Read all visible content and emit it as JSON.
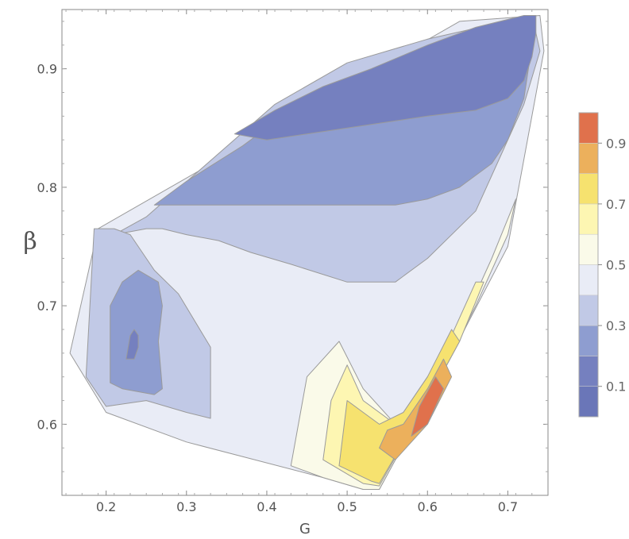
{
  "chart_data": {
    "type": "heatmap",
    "subtype": "filled-contour",
    "title": "",
    "xlabel": "G",
    "ylabel": "β",
    "xlim": [
      0.145,
      0.75
    ],
    "ylim": [
      0.54,
      0.95
    ],
    "xticks": [
      0.2,
      0.3,
      0.4,
      0.5,
      0.6,
      0.7
    ],
    "xtick_labels": [
      "0.2",
      "0.3",
      "0.4",
      "0.5",
      "0.6",
      "0.7"
    ],
    "yticks": [
      0.6,
      0.7,
      0.8,
      0.9
    ],
    "ytick_labels": [
      "0.6",
      "0.7",
      "0.8",
      "0.9"
    ],
    "grid": false,
    "legend_placement": "right",
    "colorbar": {
      "levels": [
        0,
        0.1,
        0.2,
        0.3,
        0.4,
        0.5,
        0.6,
        0.7,
        0.8,
        0.9,
        1.0
      ],
      "colors": [
        "#6a76b8",
        "#7580bf",
        "#8e9dd0",
        "#c1c9e6",
        "#e9ecf6",
        "#fafae9",
        "#fdf6b2",
        "#f6e26f",
        "#ecb05c",
        "#e0714c"
      ],
      "tick_values": [
        0.1,
        0.3,
        0.5,
        0.7,
        0.9
      ],
      "tick_labels": [
        "0.1",
        "0.3",
        "0.5",
        "0.7",
        "0.9"
      ]
    },
    "regions": [
      {
        "band": 4,
        "points": [
          [
            0.155,
            0.66
          ],
          [
            0.19,
            0.765
          ],
          [
            0.64,
            0.94
          ],
          [
            0.74,
            0.945
          ],
          [
            0.745,
            0.915
          ],
          [
            0.7,
            0.75
          ],
          [
            0.6,
            0.62
          ],
          [
            0.54,
            0.545
          ],
          [
            0.52,
            0.545
          ],
          [
            0.47,
            0.555
          ],
          [
            0.3,
            0.585
          ],
          [
            0.2,
            0.61
          ],
          [
            0.155,
            0.66
          ]
        ]
      },
      {
        "band": 3,
        "points": [
          [
            0.21,
            0.76
          ],
          [
            0.25,
            0.775
          ],
          [
            0.41,
            0.87
          ],
          [
            0.5,
            0.905
          ],
          [
            0.6,
            0.925
          ],
          [
            0.73,
            0.945
          ],
          [
            0.74,
            0.915
          ],
          [
            0.72,
            0.87
          ],
          [
            0.66,
            0.78
          ],
          [
            0.6,
            0.74
          ],
          [
            0.56,
            0.72
          ],
          [
            0.5,
            0.72
          ],
          [
            0.43,
            0.735
          ],
          [
            0.38,
            0.745
          ],
          [
            0.34,
            0.755
          ],
          [
            0.3,
            0.76
          ],
          [
            0.27,
            0.765
          ],
          [
            0.25,
            0.765
          ],
          [
            0.21,
            0.76
          ]
        ]
      },
      {
        "band": 3,
        "points": [
          [
            0.175,
            0.64
          ],
          [
            0.185,
            0.765
          ],
          [
            0.21,
            0.765
          ],
          [
            0.23,
            0.76
          ],
          [
            0.26,
            0.73
          ],
          [
            0.29,
            0.71
          ],
          [
            0.33,
            0.665
          ],
          [
            0.33,
            0.605
          ],
          [
            0.3,
            0.61
          ],
          [
            0.25,
            0.62
          ],
          [
            0.2,
            0.615
          ],
          [
            0.175,
            0.64
          ]
        ]
      },
      {
        "band": 2,
        "points": [
          [
            0.26,
            0.785
          ],
          [
            0.3,
            0.805
          ],
          [
            0.37,
            0.835
          ],
          [
            0.42,
            0.86
          ],
          [
            0.5,
            0.89
          ],
          [
            0.56,
            0.905
          ],
          [
            0.63,
            0.92
          ],
          [
            0.7,
            0.94
          ],
          [
            0.735,
            0.945
          ],
          [
            0.73,
            0.92
          ],
          [
            0.72,
            0.875
          ],
          [
            0.7,
            0.84
          ],
          [
            0.68,
            0.82
          ],
          [
            0.64,
            0.8
          ],
          [
            0.6,
            0.79
          ],
          [
            0.56,
            0.785
          ],
          [
            0.5,
            0.785
          ],
          [
            0.45,
            0.785
          ],
          [
            0.4,
            0.785
          ],
          [
            0.35,
            0.785
          ],
          [
            0.3,
            0.785
          ],
          [
            0.26,
            0.785
          ]
        ]
      },
      {
        "band": 2,
        "points": [
          [
            0.205,
            0.7
          ],
          [
            0.205,
            0.635
          ],
          [
            0.22,
            0.63
          ],
          [
            0.26,
            0.625
          ],
          [
            0.27,
            0.63
          ],
          [
            0.265,
            0.67
          ],
          [
            0.27,
            0.7
          ],
          [
            0.265,
            0.72
          ],
          [
            0.24,
            0.73
          ],
          [
            0.22,
            0.72
          ],
          [
            0.205,
            0.7
          ]
        ]
      },
      {
        "band": 1,
        "points": [
          [
            0.36,
            0.845
          ],
          [
            0.41,
            0.865
          ],
          [
            0.47,
            0.885
          ],
          [
            0.53,
            0.9
          ],
          [
            0.6,
            0.92
          ],
          [
            0.66,
            0.935
          ],
          [
            0.72,
            0.945
          ],
          [
            0.735,
            0.945
          ],
          [
            0.735,
            0.93
          ],
          [
            0.73,
            0.91
          ],
          [
            0.72,
            0.89
          ],
          [
            0.7,
            0.875
          ],
          [
            0.66,
            0.865
          ],
          [
            0.6,
            0.86
          ],
          [
            0.55,
            0.855
          ],
          [
            0.5,
            0.85
          ],
          [
            0.45,
            0.845
          ],
          [
            0.4,
            0.84
          ],
          [
            0.36,
            0.845
          ]
        ]
      },
      {
        "band": 1,
        "points": [
          [
            0.225,
            0.655
          ],
          [
            0.23,
            0.675
          ],
          [
            0.235,
            0.68
          ],
          [
            0.24,
            0.675
          ],
          [
            0.24,
            0.665
          ],
          [
            0.235,
            0.655
          ],
          [
            0.225,
            0.655
          ]
        ]
      },
      {
        "band": 5,
        "points": [
          [
            0.43,
            0.565
          ],
          [
            0.47,
            0.555
          ],
          [
            0.52,
            0.545
          ],
          [
            0.54,
            0.545
          ],
          [
            0.6,
            0.62
          ],
          [
            0.66,
            0.7
          ],
          [
            0.7,
            0.76
          ],
          [
            0.71,
            0.79
          ],
          [
            0.68,
            0.74
          ],
          [
            0.64,
            0.68
          ],
          [
            0.6,
            0.63
          ],
          [
            0.56,
            0.6
          ],
          [
            0.52,
            0.63
          ],
          [
            0.49,
            0.67
          ],
          [
            0.45,
            0.64
          ],
          [
            0.43,
            0.565
          ]
        ]
      },
      {
        "band": 6,
        "points": [
          [
            0.47,
            0.57
          ],
          [
            0.52,
            0.55
          ],
          [
            0.54,
            0.548
          ],
          [
            0.6,
            0.62
          ],
          [
            0.64,
            0.67
          ],
          [
            0.67,
            0.72
          ],
          [
            0.66,
            0.72
          ],
          [
            0.62,
            0.66
          ],
          [
            0.58,
            0.62
          ],
          [
            0.56,
            0.6
          ],
          [
            0.52,
            0.62
          ],
          [
            0.5,
            0.65
          ],
          [
            0.48,
            0.62
          ],
          [
            0.47,
            0.57
          ]
        ]
      },
      {
        "band": 7,
        "points": [
          [
            0.49,
            0.565
          ],
          [
            0.53,
            0.552
          ],
          [
            0.54,
            0.55
          ],
          [
            0.6,
            0.62
          ],
          [
            0.64,
            0.67
          ],
          [
            0.63,
            0.68
          ],
          [
            0.6,
            0.64
          ],
          [
            0.57,
            0.61
          ],
          [
            0.54,
            0.6
          ],
          [
            0.52,
            0.61
          ],
          [
            0.5,
            0.62
          ],
          [
            0.49,
            0.565
          ]
        ]
      },
      {
        "band": 8,
        "points": [
          [
            0.54,
            0.58
          ],
          [
            0.56,
            0.57
          ],
          [
            0.6,
            0.6
          ],
          [
            0.63,
            0.64
          ],
          [
            0.62,
            0.655
          ],
          [
            0.6,
            0.63
          ],
          [
            0.57,
            0.6
          ],
          [
            0.55,
            0.595
          ],
          [
            0.54,
            0.58
          ]
        ]
      },
      {
        "band": 9,
        "points": [
          [
            0.58,
            0.59
          ],
          [
            0.6,
            0.6
          ],
          [
            0.62,
            0.63
          ],
          [
            0.61,
            0.64
          ],
          [
            0.59,
            0.615
          ],
          [
            0.58,
            0.59
          ]
        ]
      }
    ]
  }
}
